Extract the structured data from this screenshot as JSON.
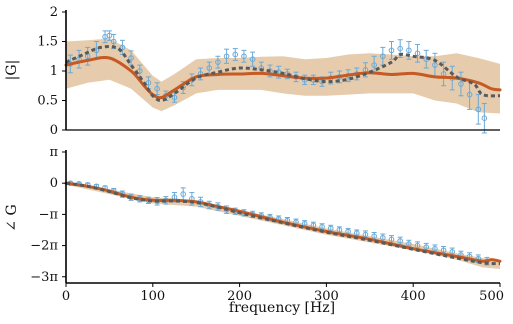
{
  "colors": {
    "band": "#e3c7a3",
    "fit_line": "#c55a24",
    "model_dashed": "#5a5a5a",
    "measured": "#6aaad8",
    "axis": "#000000"
  },
  "chart_data": [
    {
      "type": "line",
      "panel": "magnitude",
      "ylabel": "|G|",
      "xlim": [
        0,
        500
      ],
      "ylim": [
        0,
        2
      ],
      "y_ticks": [
        0,
        0.5,
        1,
        1.5,
        2
      ],
      "y_tick_labels": [
        "0",
        "0.5",
        "1",
        "1.5",
        "2"
      ],
      "x_tick_labels_shown": false,
      "grid": false,
      "band": {
        "x": [
          0,
          25,
          50,
          75,
          100,
          110,
          125,
          150,
          175,
          200,
          225,
          250,
          275,
          300,
          325,
          350,
          375,
          400,
          425,
          450,
          475,
          500
        ],
        "upper": [
          1.5,
          1.52,
          1.55,
          1.35,
          0.92,
          0.82,
          0.95,
          1.2,
          1.22,
          1.22,
          1.24,
          1.25,
          1.2,
          1.22,
          1.28,
          1.3,
          1.28,
          1.25,
          1.25,
          1.3,
          1.22,
          1.12
        ],
        "lower": [
          0.7,
          0.8,
          0.85,
          0.7,
          0.38,
          0.32,
          0.42,
          0.62,
          0.68,
          0.68,
          0.68,
          0.62,
          0.58,
          0.58,
          0.6,
          0.62,
          0.62,
          0.62,
          0.5,
          0.45,
          0.3,
          0.28
        ]
      },
      "series": [
        {
          "style": "solid",
          "x": [
            0,
            25,
            50,
            75,
            90,
            100,
            110,
            125,
            150,
            175,
            200,
            225,
            250,
            275,
            300,
            325,
            350,
            375,
            400,
            425,
            450,
            475,
            490,
            500
          ],
          "y": [
            1.1,
            1.18,
            1.22,
            1.0,
            0.75,
            0.6,
            0.55,
            0.68,
            0.9,
            0.94,
            0.95,
            0.96,
            0.92,
            0.88,
            0.88,
            0.93,
            0.97,
            0.94,
            0.96,
            0.9,
            0.88,
            0.8,
            0.7,
            0.68
          ]
        },
        {
          "style": "dashed",
          "x": [
            0,
            20,
            40,
            60,
            75,
            90,
            100,
            110,
            125,
            150,
            175,
            200,
            225,
            250,
            275,
            300,
            325,
            350,
            375,
            385,
            400,
            425,
            450,
            470,
            480,
            500
          ],
          "y": [
            1.15,
            1.28,
            1.4,
            1.38,
            1.1,
            0.8,
            0.58,
            0.5,
            0.62,
            0.88,
            0.98,
            1.05,
            1.02,
            0.96,
            0.87,
            0.82,
            0.86,
            0.98,
            1.15,
            1.28,
            1.25,
            1.18,
            0.9,
            0.78,
            0.6,
            0.58
          ]
        }
      ],
      "measured": {
        "x": [
          5,
          15,
          25,
          35,
          45,
          50,
          55,
          65,
          75,
          85,
          95,
          105,
          115,
          125,
          135,
          145,
          155,
          165,
          175,
          185,
          195,
          205,
          215,
          225,
          235,
          245,
          255,
          265,
          275,
          285,
          295,
          305,
          315,
          325,
          335,
          345,
          355,
          365,
          375,
          385,
          395,
          405,
          415,
          425,
          435,
          445,
          455,
          465,
          475,
          482
        ],
        "y": [
          1.12,
          1.2,
          1.25,
          1.35,
          1.58,
          1.6,
          1.5,
          1.4,
          1.22,
          1.0,
          0.8,
          0.7,
          0.58,
          0.55,
          0.72,
          0.85,
          0.95,
          1.05,
          1.15,
          1.25,
          1.28,
          1.25,
          1.2,
          1.05,
          1.0,
          0.98,
          0.95,
          0.9,
          0.85,
          0.85,
          0.82,
          0.88,
          0.9,
          0.92,
          0.95,
          1.02,
          1.1,
          1.25,
          1.35,
          1.38,
          1.35,
          1.3,
          1.2,
          1.1,
          0.95,
          0.88,
          0.78,
          0.6,
          0.35,
          0.2
        ],
        "err": [
          0.15,
          0.15,
          0.15,
          0.15,
          0.1,
          0.08,
          0.12,
          0.12,
          0.12,
          0.1,
          0.1,
          0.1,
          0.08,
          0.08,
          0.1,
          0.1,
          0.1,
          0.1,
          0.1,
          0.12,
          0.1,
          0.1,
          0.12,
          0.1,
          0.1,
          0.1,
          0.08,
          0.08,
          0.08,
          0.08,
          0.08,
          0.1,
          0.1,
          0.1,
          0.1,
          0.12,
          0.15,
          0.15,
          0.15,
          0.15,
          0.15,
          0.15,
          0.15,
          0.2,
          0.2,
          0.2,
          0.2,
          0.25,
          0.25,
          0.25
        ]
      }
    },
    {
      "type": "line",
      "panel": "phase",
      "ylabel": "∠ G",
      "xlabel": "frequency [Hz]",
      "xlim": [
        0,
        500
      ],
      "x_ticks": [
        0,
        100,
        200,
        300,
        400,
        500
      ],
      "x_tick_labels": [
        "0",
        "100",
        "200",
        "300",
        "400",
        "500"
      ],
      "ylim_in_pi": [
        -3.2,
        1.0
      ],
      "y_ticks_in_pi": [
        1,
        0,
        -1,
        -2,
        -3
      ],
      "y_tick_labels": [
        "π",
        "0",
        "−π",
        "−2π",
        "−3π"
      ],
      "grid": false,
      "band": {
        "x": [
          0,
          50,
          100,
          150,
          200,
          250,
          300,
          350,
          400,
          450,
          480,
          500
        ],
        "upper_in_pi": [
          0.05,
          -0.2,
          -0.45,
          -0.55,
          -0.85,
          -1.15,
          -1.45,
          -1.7,
          -1.95,
          -2.25,
          -2.4,
          -2.5
        ],
        "lower_in_pi": [
          -0.05,
          -0.35,
          -0.65,
          -0.75,
          -1.05,
          -1.35,
          -1.65,
          -1.9,
          -2.15,
          -2.45,
          -2.7,
          -2.75
        ]
      },
      "series": [
        {
          "style": "solid",
          "x": [
            0,
            25,
            50,
            75,
            100,
            125,
            150,
            175,
            200,
            250,
            300,
            350,
            400,
            450,
            480,
            490,
            500
          ],
          "y_in_pi": [
            0,
            -0.1,
            -0.25,
            -0.45,
            -0.55,
            -0.55,
            -0.6,
            -0.75,
            -0.9,
            -1.25,
            -1.55,
            -1.8,
            -2.1,
            -2.35,
            -2.5,
            -2.45,
            -2.5
          ]
        },
        {
          "style": "dashed",
          "x": [
            0,
            25,
            50,
            75,
            100,
            125,
            150,
            175,
            200,
            250,
            300,
            350,
            400,
            450,
            480,
            500
          ],
          "y_in_pi": [
            0,
            -0.1,
            -0.27,
            -0.47,
            -0.57,
            -0.57,
            -0.62,
            -0.77,
            -0.95,
            -1.27,
            -1.57,
            -1.83,
            -2.12,
            -2.4,
            -2.55,
            -2.58
          ]
        }
      ],
      "measured": {
        "x": [
          5,
          15,
          25,
          35,
          45,
          55,
          65,
          75,
          85,
          95,
          105,
          115,
          125,
          135,
          145,
          155,
          165,
          175,
          185,
          195,
          205,
          215,
          225,
          235,
          245,
          255,
          265,
          275,
          285,
          295,
          305,
          315,
          325,
          335,
          345,
          355,
          365,
          375,
          385,
          395,
          405,
          415,
          425,
          435,
          445,
          455,
          465,
          475,
          485
        ],
        "y_in_pi": [
          0,
          -0.02,
          -0.05,
          -0.1,
          -0.15,
          -0.25,
          -0.35,
          -0.45,
          -0.5,
          -0.55,
          -0.58,
          -0.55,
          -0.45,
          -0.35,
          -0.5,
          -0.6,
          -0.7,
          -0.75,
          -0.85,
          -0.9,
          -0.95,
          -1.0,
          -1.05,
          -1.1,
          -1.15,
          -1.2,
          -1.25,
          -1.3,
          -1.35,
          -1.4,
          -1.45,
          -1.5,
          -1.55,
          -1.6,
          -1.65,
          -1.7,
          -1.75,
          -1.8,
          -1.85,
          -1.95,
          -2.0,
          -2.05,
          -2.1,
          -2.15,
          -2.2,
          -2.3,
          -2.35,
          -2.42,
          -2.5
        ],
        "err_in_pi": [
          0.05,
          0.05,
          0.05,
          0.05,
          0.06,
          0.08,
          0.1,
          0.1,
          0.1,
          0.1,
          0.12,
          0.12,
          0.15,
          0.2,
          0.2,
          0.15,
          0.12,
          0.12,
          0.12,
          0.1,
          0.1,
          0.1,
          0.1,
          0.1,
          0.1,
          0.1,
          0.1,
          0.1,
          0.1,
          0.1,
          0.1,
          0.1,
          0.1,
          0.1,
          0.12,
          0.12,
          0.12,
          0.12,
          0.12,
          0.12,
          0.12,
          0.12,
          0.12,
          0.12,
          0.12,
          0.12,
          0.12,
          0.12,
          0.12
        ]
      }
    }
  ]
}
